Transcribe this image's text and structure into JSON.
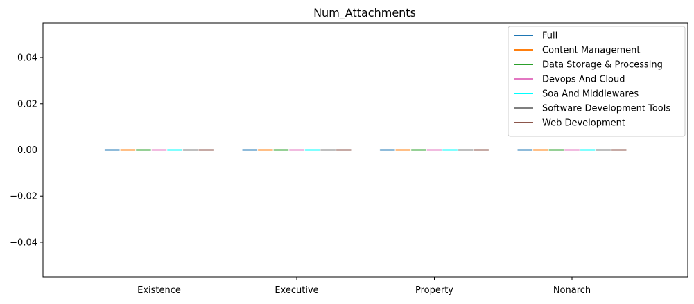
{
  "chart_data": {
    "type": "box",
    "title": "Num_Attachments",
    "xlabel": "",
    "ylabel": "",
    "categories": [
      "Existence",
      "Executive",
      "Property",
      "Nonarch"
    ],
    "ylim": [
      -0.055,
      0.055
    ],
    "yticks": [
      0.04,
      0.02,
      0.0,
      -0.02,
      -0.04
    ],
    "ytick_labels": [
      "0.04",
      "0.02",
      "0.00",
      "−0.02",
      "−0.04"
    ],
    "grid": false,
    "legend_position": "top-right",
    "series": [
      {
        "name": "Full",
        "color": "#1f77b4",
        "values": [
          0,
          0,
          0,
          0
        ]
      },
      {
        "name": "Content Management",
        "color": "#ff7f0e",
        "values": [
          0,
          0,
          0,
          0
        ]
      },
      {
        "name": "Data Storage & Processing",
        "color": "#2ca02c",
        "values": [
          0,
          0,
          0,
          0
        ]
      },
      {
        "name": "Devops And Cloud",
        "color": "#e377c2",
        "values": [
          0,
          0,
          0,
          0
        ]
      },
      {
        "name": "Soa And Middlewares",
        "color": "#00ffff",
        "values": [
          0,
          0,
          0,
          0
        ]
      },
      {
        "name": "Software Development Tools",
        "color": "#7f7f7f",
        "values": [
          0,
          0,
          0,
          0
        ]
      },
      {
        "name": "Web Development",
        "color": "#8c564b",
        "values": [
          0,
          0,
          0,
          0
        ]
      }
    ]
  }
}
